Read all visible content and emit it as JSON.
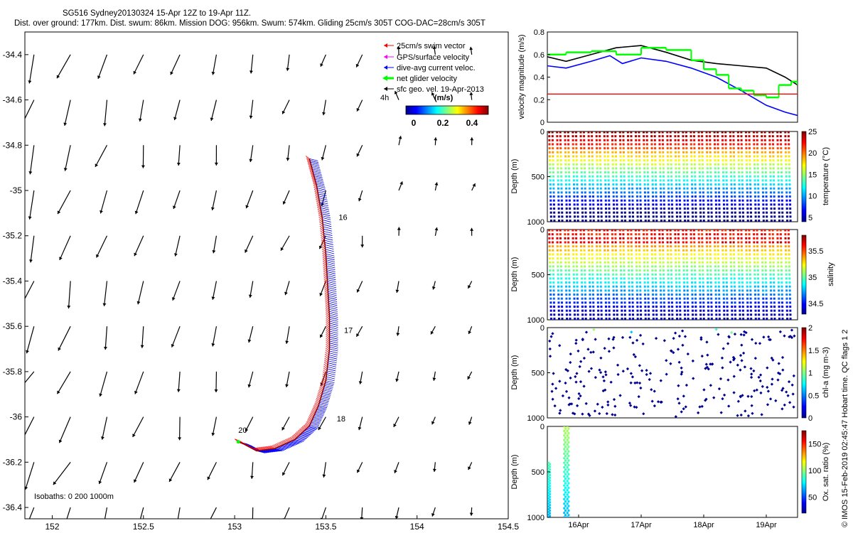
{
  "header": {
    "line1": "SG516 Sydney20130324 15-Apr 12Z to 19-Apr 11Z.",
    "line2": "Dist. over ground: 177km. Dist. swum: 86km. Mission DOG: 956km. Swum: 574km. Gliding 25cm/s 305T COG-DAC=28cm/s 305T"
  },
  "side_note": "© IMOS 15-Feb-2019 02:45:47 Hobart time. QC flags 1  2",
  "colors": {
    "swim_vector": "#ff0000",
    "gps_velocity": "#ff00ff",
    "dive_avg_current": "#0000ff",
    "net_glider_velocity": "#00ff00",
    "sfc_geo_velocity": "#000000",
    "track": "#8b0000"
  },
  "chart_data": [
    {
      "type": "scatter",
      "subtype": "map-vector-field",
      "xlim": [
        151.85,
        154.5
      ],
      "ylim": [
        -36.45,
        -34.3
      ],
      "xticks": [
        "152",
        "152.5",
        "153",
        "153.5",
        "154",
        "154.5"
      ],
      "yticks": [
        "-34.4",
        "-34.6",
        "-34.8",
        "-35",
        "-35.2",
        "-35.4",
        "-35.6",
        "-35.8",
        "-36",
        "-36.2",
        "-36.4"
      ],
      "legend": {
        "placement": "top-right",
        "entries": [
          "25cm/s swim vector",
          "GPS/surface velocity",
          "dive-avg current veloc.",
          "net glider velocity",
          "sfc geo. vel. 19-Apr-2013"
        ]
      },
      "scale_label": "4h",
      "colorbar": {
        "label": "(m/s)",
        "ticks": [
          "0",
          "0.2",
          "0.4"
        ],
        "range": [
          0,
          0.5
        ]
      },
      "isobaths_label": "Isobaths: 0   200  1000m",
      "day_labels": [
        {
          "text": "16",
          "lon": 153.57,
          "lat": -35.13
        },
        {
          "text": "17",
          "lon": 153.6,
          "lat": -35.63
        },
        {
          "text": "18",
          "lon": 153.56,
          "lat": -36.02
        },
        {
          "text": "20",
          "lon": 153.02,
          "lat": -36.07
        }
      ],
      "track": [
        [
          153.41,
          -34.86
        ],
        [
          153.45,
          -34.98
        ],
        [
          153.48,
          -35.12
        ],
        [
          153.5,
          -35.28
        ],
        [
          153.51,
          -35.42
        ],
        [
          153.52,
          -35.56
        ],
        [
          153.52,
          -35.7
        ],
        [
          153.5,
          -35.84
        ],
        [
          153.46,
          -35.95
        ],
        [
          153.41,
          -36.04
        ],
        [
          153.33,
          -36.1
        ],
        [
          153.22,
          -36.14
        ],
        [
          153.12,
          -36.15
        ],
        [
          153.05,
          -36.12
        ],
        [
          153.02,
          -36.11
        ]
      ],
      "geo_current_field": {
        "grid_lons": [
          151.9,
          152.1,
          152.3,
          152.5,
          152.7,
          152.9,
          153.1,
          153.3,
          153.5,
          153.7,
          153.9,
          154.1,
          154.3
        ],
        "grid_lats": [
          -34.4,
          -34.6,
          -34.8,
          -35.0,
          -35.2,
          -35.4,
          -35.6,
          -35.8,
          -36.0,
          -36.2,
          -36.4
        ],
        "note": "surface geostrophic velocity vectors (mostly south/south-east ~0.3-0.5 m/s in west, weak north in east)"
      }
    },
    {
      "type": "line",
      "ylabel": "velocity magnitude (m/s)",
      "ylim": [
        0,
        0.8
      ],
      "yticks": [
        "0",
        "0.2",
        "0.4",
        "0.6",
        "0.8"
      ],
      "xlim": [
        15.5,
        19.5
      ],
      "series": [
        {
          "color": "black",
          "x": [
            15.5,
            15.8,
            16.2,
            16.6,
            17.0,
            17.4,
            17.8,
            18.2,
            18.6,
            19.0,
            19.3,
            19.5
          ],
          "y": [
            0.58,
            0.54,
            0.6,
            0.66,
            0.68,
            0.62,
            0.55,
            0.52,
            0.5,
            0.48,
            0.4,
            0.33
          ]
        },
        {
          "color": "blue",
          "x": [
            15.5,
            15.8,
            16.2,
            16.5,
            16.7,
            17.0,
            17.4,
            17.8,
            18.2,
            18.6,
            19.0,
            19.3,
            19.5
          ],
          "y": [
            0.5,
            0.48,
            0.54,
            0.59,
            0.52,
            0.57,
            0.54,
            0.48,
            0.4,
            0.28,
            0.15,
            0.09,
            0.06
          ]
        },
        {
          "color": "green",
          "x": [
            15.5,
            15.8,
            16.2,
            16.6,
            17.0,
            17.4,
            17.8,
            18.0,
            18.2,
            18.4,
            18.6,
            18.8,
            19.0,
            19.2,
            19.4,
            19.5
          ],
          "y": [
            0.6,
            0.62,
            0.63,
            0.6,
            0.66,
            0.64,
            0.55,
            0.47,
            0.42,
            0.3,
            0.28,
            0.24,
            0.22,
            0.33,
            0.36,
            0.33
          ]
        },
        {
          "color": "red",
          "x": [
            15.5,
            19.5
          ],
          "y": [
            0.25,
            0.25
          ]
        }
      ]
    },
    {
      "type": "scatter",
      "variable": "temperature",
      "ylabel": "Depth (m)",
      "ylim": [
        0,
        1000
      ],
      "yticks": [
        "0",
        "500",
        "1000"
      ],
      "clabel": "temperature (°C)",
      "clim": [
        4,
        25
      ],
      "cticks": [
        "5",
        "10",
        "15",
        "20",
        "25"
      ],
      "n_profiles": 31,
      "surface_value": 24,
      "deep_value": 5
    },
    {
      "type": "scatter",
      "variable": "salinity",
      "ylabel": "Depth (m)",
      "ylim": [
        0,
        1000
      ],
      "yticks": [
        "0",
        "500",
        "1000"
      ],
      "clabel": "salinity",
      "clim": [
        34.3,
        35.8
      ],
      "cticks": [
        "34.5",
        "35",
        "35.5"
      ],
      "n_profiles": 31,
      "surface_value": 35.5,
      "deep_value": 34.4
    },
    {
      "type": "scatter",
      "variable": "chlorophyll",
      "ylabel": "Depth (m)",
      "ylim": [
        0,
        1000
      ],
      "yticks": [
        "0",
        "500",
        "1000"
      ],
      "clabel": "chl-a (mg m-3)",
      "clim": [
        0,
        2
      ],
      "cticks": [
        "0",
        "0.5",
        "1",
        "1.5",
        "2"
      ],
      "n_points": 280
    },
    {
      "type": "scatter",
      "variable": "oxygen saturation",
      "ylabel": "Depth (m)",
      "ylim": [
        0,
        1000
      ],
      "yticks": [
        "0",
        "500",
        "1000"
      ],
      "clabel": "Ox. sat. ratio (%)",
      "clim": [
        20,
        175
      ],
      "cticks": [
        "50",
        "100",
        "150"
      ],
      "xlim": [
        15.5,
        19.5
      ],
      "xticks": [
        "16Apr",
        "17Apr",
        "18Apr",
        "19Apr"
      ],
      "profile_days": [
        15.52,
        15.77,
        15.82
      ]
    }
  ]
}
